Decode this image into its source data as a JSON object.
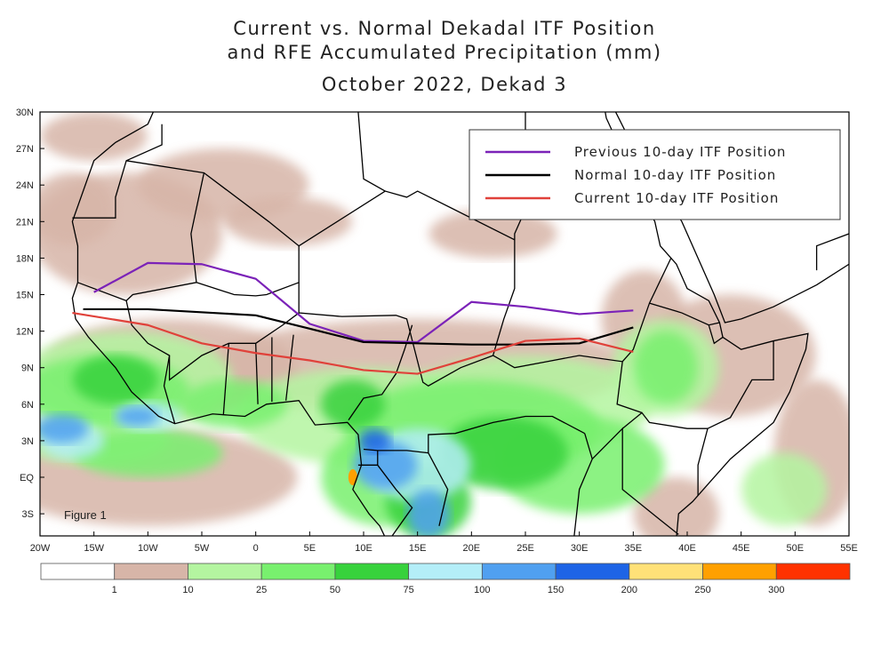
{
  "title_lines": [
    "Current vs. Normal Dekadal ITF Position",
    "and RFE Accumulated Precipitation (mm)",
    "October 2022, Dekad 3"
  ],
  "figure_label": "Figure 1",
  "chart_data": {
    "type": "line",
    "title": "Current vs. Normal Dekadal ITF Position and RFE Accumulated Precipitation (mm) October 2022, Dekad 3",
    "xlim": [
      -20,
      55
    ],
    "ylim": [
      -5,
      30
    ],
    "x_ticks": [
      {
        "v": -20,
        "label": "20W"
      },
      {
        "v": -15,
        "label": "15W"
      },
      {
        "v": -10,
        "label": "10W"
      },
      {
        "v": -5,
        "label": "5W"
      },
      {
        "v": 0,
        "label": "0"
      },
      {
        "v": 5,
        "label": "5E"
      },
      {
        "v": 10,
        "label": "10E"
      },
      {
        "v": 15,
        "label": "15E"
      },
      {
        "v": 20,
        "label": "20E"
      },
      {
        "v": 25,
        "label": "25E"
      },
      {
        "v": 30,
        "label": "30E"
      },
      {
        "v": 35,
        "label": "35E"
      },
      {
        "v": 40,
        "label": "40E"
      },
      {
        "v": 45,
        "label": "45E"
      },
      {
        "v": 50,
        "label": "50E"
      },
      {
        "v": 55,
        "label": "55E"
      }
    ],
    "y_ticks": [
      {
        "v": 30,
        "label": "30N"
      },
      {
        "v": 27,
        "label": "27N"
      },
      {
        "v": 24,
        "label": "24N"
      },
      {
        "v": 21,
        "label": "21N"
      },
      {
        "v": 18,
        "label": "18N"
      },
      {
        "v": 15,
        "label": "15N"
      },
      {
        "v": 12,
        "label": "12N"
      },
      {
        "v": 9,
        "label": "9N"
      },
      {
        "v": 6,
        "label": "6N"
      },
      {
        "v": 3,
        "label": "3N"
      },
      {
        "v": 0,
        "label": "EQ"
      },
      {
        "v": -3,
        "label": "3S"
      }
    ],
    "legend_position": "top-right",
    "series": [
      {
        "name": "Previous 10-day ITF Position",
        "color": "#7b22b8",
        "points": [
          [
            -15,
            15.2
          ],
          [
            -10,
            17.6
          ],
          [
            -5,
            17.5
          ],
          [
            0,
            16.3
          ],
          [
            5,
            12.6
          ],
          [
            10,
            11.2
          ],
          [
            15,
            11.1
          ],
          [
            20,
            14.4
          ],
          [
            25,
            14.0
          ],
          [
            30,
            13.4
          ],
          [
            35,
            13.7
          ]
        ]
      },
      {
        "name": "Normal 10-day ITF Position",
        "color": "#000000",
        "points": [
          [
            -16,
            13.8
          ],
          [
            -10,
            13.8
          ],
          [
            0,
            13.3
          ],
          [
            5,
            12.2
          ],
          [
            10,
            11.1
          ],
          [
            15,
            11.0
          ],
          [
            20,
            10.9
          ],
          [
            25,
            10.9
          ],
          [
            30,
            11.0
          ],
          [
            35,
            12.3
          ]
        ]
      },
      {
        "name": "Current 10-day ITF Position",
        "color": "#e0413a",
        "points": [
          [
            -17,
            13.5
          ],
          [
            -10,
            12.5
          ],
          [
            -5,
            11.0
          ],
          [
            0,
            10.2
          ],
          [
            5,
            9.6
          ],
          [
            10,
            8.8
          ],
          [
            15,
            8.5
          ],
          [
            20,
            9.8
          ],
          [
            25,
            11.2
          ],
          [
            30,
            11.4
          ],
          [
            35,
            10.3
          ]
        ]
      }
    ],
    "colorbar": {
      "unit": "mm",
      "labels": [
        "1",
        "10",
        "25",
        "50",
        "75",
        "100",
        "150",
        "200",
        "250",
        "300"
      ],
      "colors": [
        "#ffffff",
        "#d7b5a8",
        "#b4f5a0",
        "#78f06e",
        "#37d23c",
        "#b4eef8",
        "#50a0f0",
        "#1e64e6",
        "#ffe178",
        "#ffa000",
        "#ff3200"
      ]
    }
  }
}
